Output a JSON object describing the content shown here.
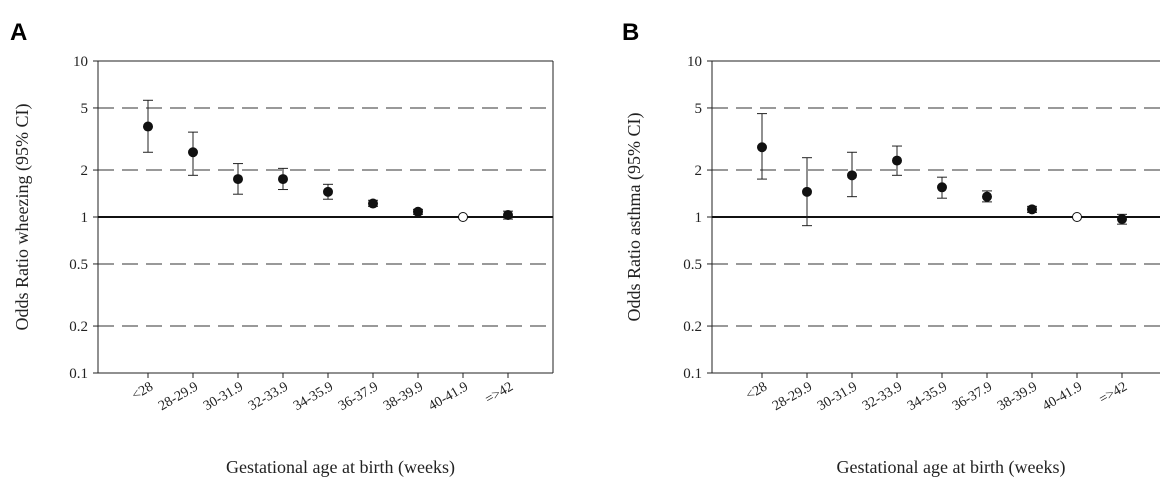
{
  "chart_data": [
    {
      "type": "scatter",
      "panel_letter": "A",
      "ylabel": "Odds Ratio wheezing (95% CI)",
      "xlabel": "Gestational age at birth (weeks)",
      "yscale": "log",
      "ylim": [
        0.1,
        10
      ],
      "yticks": [
        0.1,
        0.2,
        0.5,
        1,
        2,
        5,
        10
      ],
      "ytick_labels": [
        "0.1",
        "0.2",
        "0.5",
        "1",
        "2",
        "5",
        "10"
      ],
      "reference_line": 1,
      "grid": "dashed horizontal at 0.2, 0.5, 2, 5",
      "categories": [
        "<28",
        "28-29.9",
        "30-31.9",
        "32-33.9",
        "34-35.9",
        "36-37.9",
        "38-39.9",
        "40-41.9",
        "=>42"
      ],
      "or": [
        3.8,
        2.6,
        1.75,
        1.75,
        1.45,
        1.22,
        1.08,
        1.0,
        1.03
      ],
      "ci_lower": [
        2.6,
        1.85,
        1.4,
        1.5,
        1.3,
        1.17,
        1.04,
        null,
        0.97
      ],
      "ci_upper": [
        5.6,
        3.5,
        2.2,
        2.05,
        1.62,
        1.28,
        1.12,
        null,
        1.09
      ],
      "reference_category": "40-41.9"
    },
    {
      "type": "scatter",
      "panel_letter": "B",
      "ylabel": "Odds Ratio asthma (95% CI)",
      "xlabel": "Gestational age at birth (weeks)",
      "yscale": "log",
      "ylim": [
        0.1,
        10
      ],
      "yticks": [
        0.1,
        0.2,
        0.5,
        1,
        2,
        5,
        10
      ],
      "ytick_labels": [
        "0.1",
        "0.2",
        "0.5",
        "1",
        "2",
        "5",
        "10"
      ],
      "reference_line": 1,
      "grid": "dashed horizontal at 0.2, 0.5, 2, 5",
      "categories": [
        "<28",
        "28-29.9",
        "30-31.9",
        "32-33.9",
        "34-35.9",
        "36-37.9",
        "38-39.9",
        "40-41.9",
        "=>42"
      ],
      "or": [
        2.8,
        1.45,
        1.85,
        2.3,
        1.55,
        1.35,
        1.12,
        1.0,
        0.97
      ],
      "ci_lower": [
        1.75,
        0.88,
        1.35,
        1.85,
        1.32,
        1.25,
        1.07,
        null,
        0.9
      ],
      "ci_upper": [
        4.6,
        2.4,
        2.6,
        2.85,
        1.8,
        1.47,
        1.17,
        null,
        1.04
      ],
      "reference_category": "40-41.9"
    }
  ]
}
